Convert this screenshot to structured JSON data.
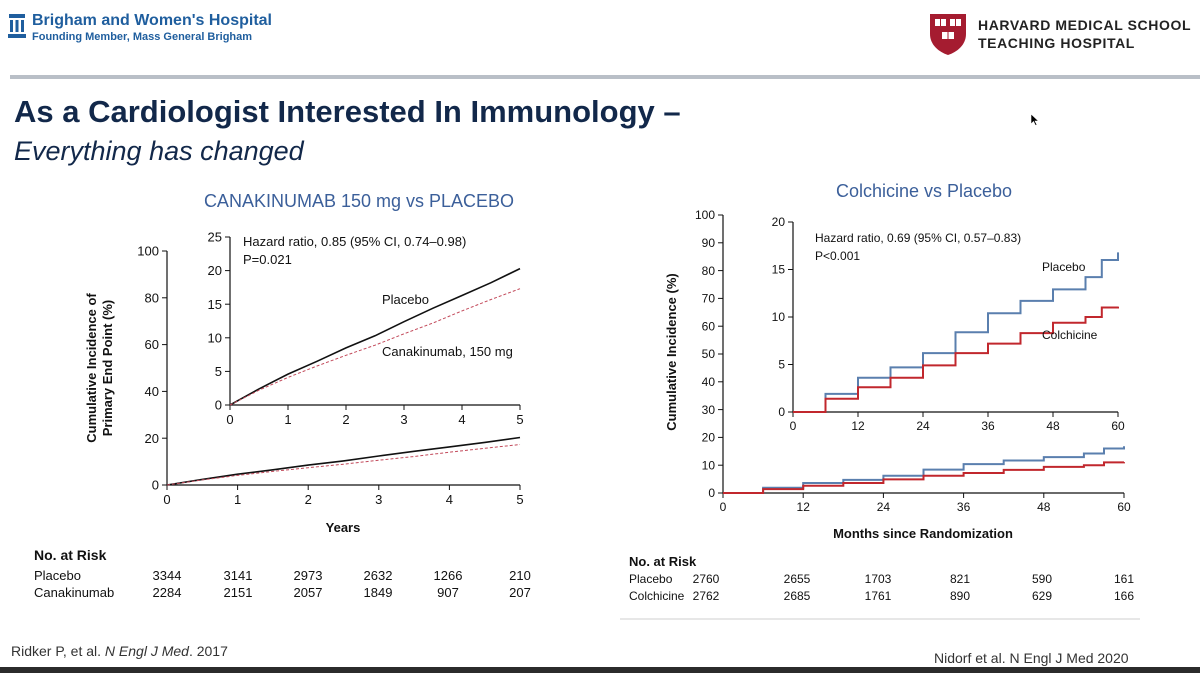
{
  "header": {
    "hospital_name": "Brigham and Women's Hospital",
    "hospital_sub": "Founding Member, Mass General Brigham",
    "hms_line1": "HARVARD MEDICAL SCHOOL",
    "hms_line2": "TEACHING HOSPITAL"
  },
  "slide": {
    "title": "As a Cardiologist Interested In Immunology –",
    "subtitle": "Everything has changed"
  },
  "citations": {
    "left_author": "Ridker P, et al. ",
    "left_journal": "N Engl J Med",
    "left_year": ". 2017",
    "right": "Nidorf et al. N Engl J Med 2020"
  },
  "colors": {
    "navy": "#12284a",
    "blue_title": "#3b5f9a",
    "placebo_blue": "#5a7fae",
    "colchicine_red": "#c1272d",
    "canakinumab_red": "#c2495a"
  },
  "chart_data": [
    {
      "type": "line",
      "title": "CANAKINUMAB 150 mg vs PLACEBO",
      "xlabel": "Years",
      "ylabel": "Cumulative Incidence of Primary End Point (%)",
      "ylabel_lines": [
        "Cumulative Incidence of",
        "Primary End Point (%)"
      ],
      "xlim": [
        0,
        5
      ],
      "ylim": [
        0,
        100
      ],
      "xticks": [
        0,
        1,
        2,
        3,
        4,
        5
      ],
      "yticks": [
        0,
        20,
        40,
        60,
        80,
        100
      ],
      "series": [
        {
          "name": "Placebo",
          "x": [
            0,
            0.5,
            1,
            1.5,
            2,
            2.5,
            3,
            3.5,
            4,
            4.5,
            5
          ],
          "y": [
            0,
            2.4,
            4.6,
            6.5,
            8.5,
            10.3,
            12.4,
            14.4,
            16.3,
            18.2,
            20.3
          ]
        },
        {
          "name": "Canakinumab, 150 mg",
          "x": [
            0,
            0.5,
            1,
            1.5,
            2,
            2.5,
            3,
            3.5,
            4,
            4.5,
            5
          ],
          "y": [
            0,
            2.2,
            4.1,
            5.8,
            7.4,
            8.9,
            10.6,
            12.2,
            14.0,
            15.7,
            17.3
          ]
        }
      ],
      "inset": {
        "xlim": [
          0,
          5
        ],
        "ylim": [
          0,
          25
        ],
        "xticks": [
          0,
          1,
          2,
          3,
          4,
          5
        ],
        "yticks": [
          0,
          5,
          10,
          15,
          20,
          25
        ],
        "annotation_line1": "Hazard ratio, 0.85 (95% CI, 0.74–0.98)",
        "annotation_line2": "P=0.021",
        "label_placebo": "Placebo",
        "label_treatment": "Canakinumab, 150 mg"
      },
      "at_risk": {
        "header": "No. at Risk",
        "rows": [
          {
            "label": "Placebo",
            "values": [
              "3344",
              "3141",
              "2973",
              "2632",
              "1266",
              "210"
            ]
          },
          {
            "label": "Canakinumab",
            "values": [
              "2284",
              "2151",
              "2057",
              "1849",
              "907",
              "207"
            ]
          }
        ]
      }
    },
    {
      "type": "line",
      "title": "Colchicine vs Placebo",
      "xlabel": "Months since Randomization",
      "ylabel": "Cumulative Incidence (%)",
      "xlim": [
        0,
        60
      ],
      "ylim": [
        0,
        100
      ],
      "xticks": [
        0,
        12,
        24,
        36,
        48,
        60
      ],
      "yticks": [
        0,
        10,
        20,
        30,
        40,
        50,
        60,
        70,
        80,
        90,
        100
      ],
      "series": [
        {
          "name": "Placebo",
          "x": [
            0,
            6,
            12,
            18,
            24,
            30,
            36,
            42,
            48,
            54,
            57,
            60
          ],
          "y": [
            0,
            1.9,
            3.6,
            4.7,
            6.2,
            8.4,
            10.4,
            11.7,
            12.9,
            14.2,
            16.0,
            16.8
          ]
        },
        {
          "name": "Colchicine",
          "x": [
            0,
            6,
            12,
            18,
            24,
            30,
            36,
            42,
            48,
            54,
            57,
            60
          ],
          "y": [
            0,
            1.4,
            2.6,
            3.6,
            4.9,
            6.2,
            7.2,
            8.3,
            9.4,
            10.0,
            11.0,
            11.1
          ]
        }
      ],
      "inset": {
        "xlim": [
          0,
          60
        ],
        "ylim": [
          0,
          20
        ],
        "xticks": [
          0,
          12,
          24,
          36,
          48,
          60
        ],
        "yticks": [
          0,
          5,
          10,
          15,
          20
        ],
        "annotation_line1": "Hazard ratio, 0.69 (95% CI, 0.57–0.83)",
        "annotation_line2": "P<0.001",
        "label_placebo": "Placebo",
        "label_treatment": "Colchicine"
      },
      "at_risk": {
        "header": "No. at Risk",
        "rows": [
          {
            "label": "Placebo",
            "values": [
              "2760",
              "2655",
              "1703",
              "821",
              "590",
              "161"
            ]
          },
          {
            "label": "Colchicine",
            "values": [
              "2762",
              "2685",
              "1761",
              "890",
              "629",
              "166"
            ]
          }
        ]
      }
    }
  ]
}
